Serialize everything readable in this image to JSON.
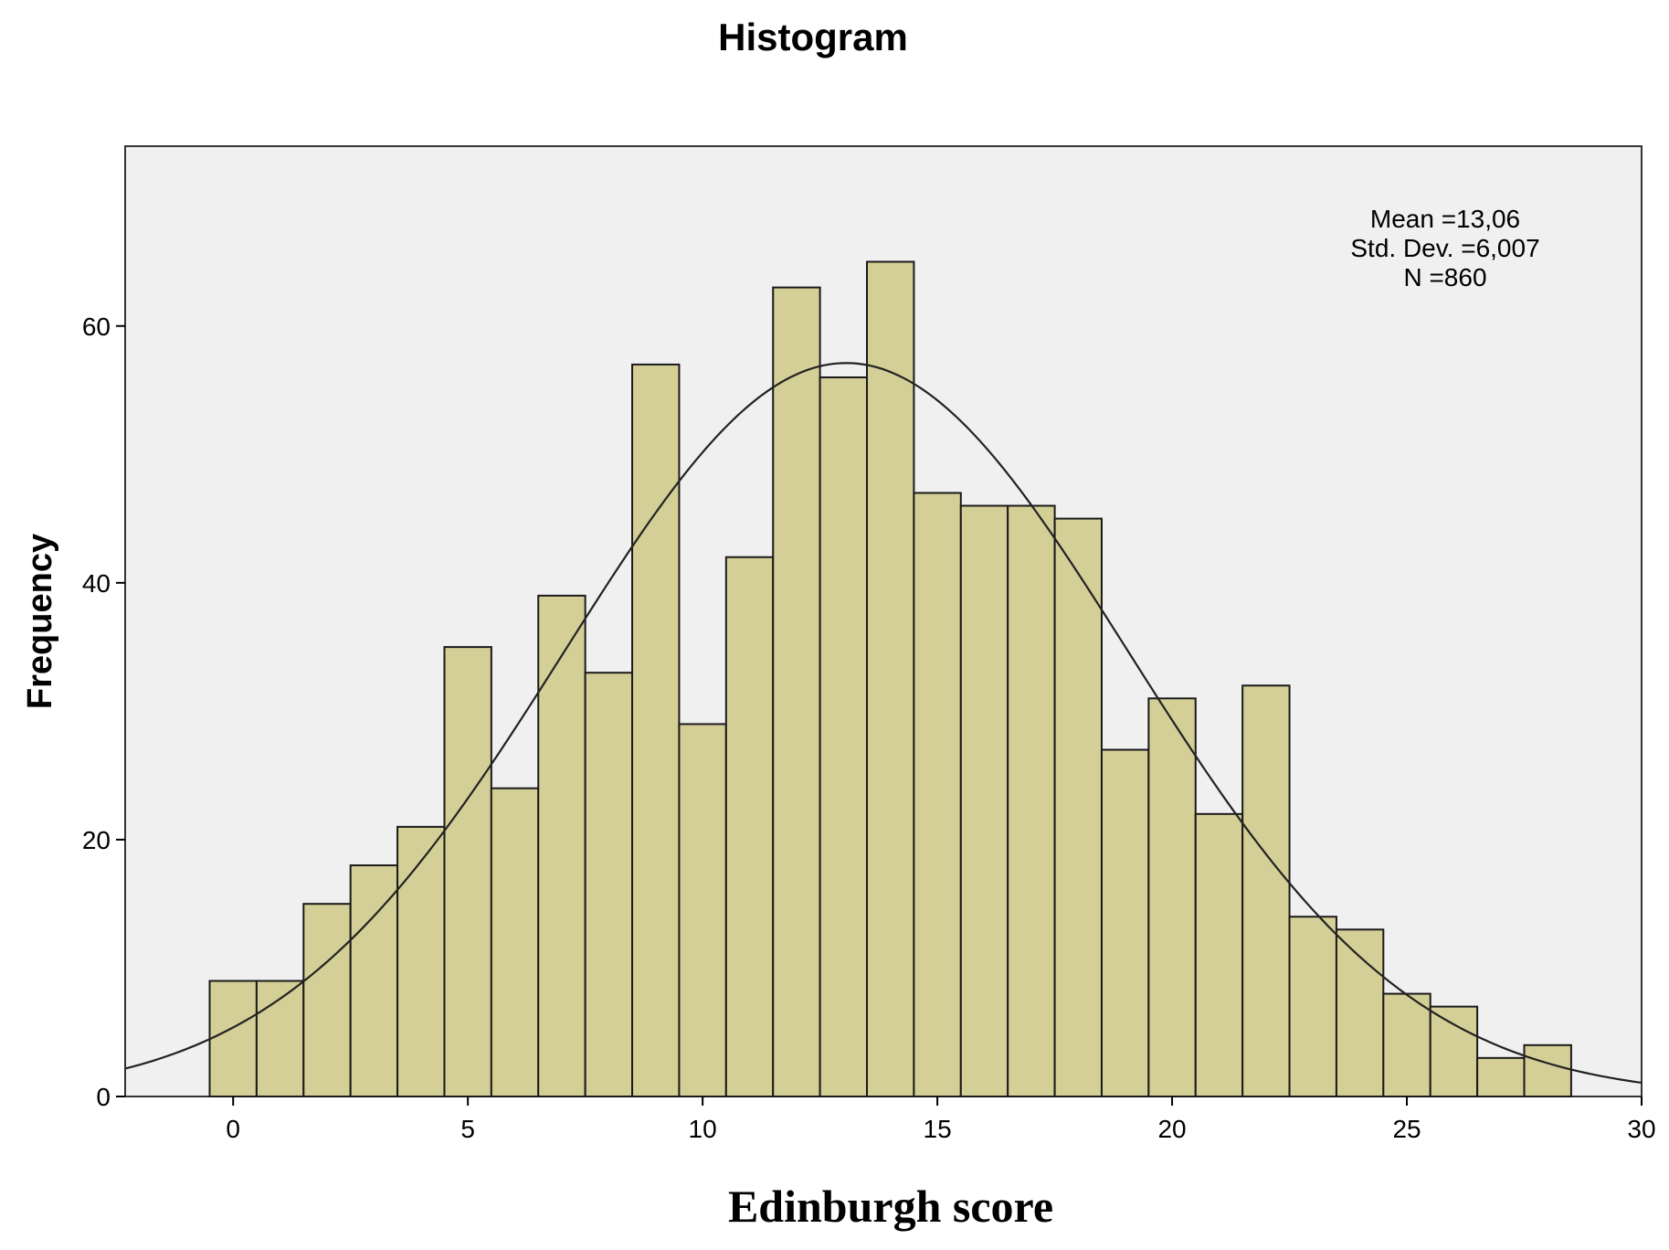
{
  "chart_data": {
    "type": "bar",
    "title": "Histogram",
    "xlabel": "Edinburgh score",
    "ylabel": "Frequency",
    "xlim": [
      -2.3,
      30
    ],
    "ylim": [
      0,
      74
    ],
    "xticks": [
      0,
      5,
      10,
      15,
      20,
      25,
      30
    ],
    "yticks": [
      0,
      20,
      40,
      60
    ],
    "grid": false,
    "bins": [
      {
        "x": 0,
        "count": 9
      },
      {
        "x": 1,
        "count": 9
      },
      {
        "x": 2,
        "count": 15
      },
      {
        "x": 3,
        "count": 18
      },
      {
        "x": 4,
        "count": 21
      },
      {
        "x": 5,
        "count": 35
      },
      {
        "x": 6,
        "count": 24
      },
      {
        "x": 7,
        "count": 39
      },
      {
        "x": 8,
        "count": 33
      },
      {
        "x": 9,
        "count": 57
      },
      {
        "x": 10,
        "count": 29
      },
      {
        "x": 11,
        "count": 42
      },
      {
        "x": 12,
        "count": 63
      },
      {
        "x": 13,
        "count": 56
      },
      {
        "x": 14,
        "count": 65
      },
      {
        "x": 15,
        "count": 47
      },
      {
        "x": 16,
        "count": 46
      },
      {
        "x": 17,
        "count": 46
      },
      {
        "x": 18,
        "count": 45
      },
      {
        "x": 19,
        "count": 27
      },
      {
        "x": 20,
        "count": 31
      },
      {
        "x": 21,
        "count": 22
      },
      {
        "x": 22,
        "count": 32
      },
      {
        "x": 23,
        "count": 14
      },
      {
        "x": 24,
        "count": 13
      },
      {
        "x": 25,
        "count": 8
      },
      {
        "x": 26,
        "count": 7
      },
      {
        "x": 27,
        "count": 3
      },
      {
        "x": 28,
        "count": 4
      }
    ],
    "normal_curve": {
      "mean": 13.06,
      "std": 6.007,
      "n": 860,
      "bin_width": 1
    },
    "stats": {
      "mean_label": "Mean =13,06",
      "std_label": "Std. Dev. =6,007",
      "n_label": "N =860"
    },
    "colors": {
      "bar_fill": "#d4cf96",
      "bar_stroke": "#1a1a1a",
      "plot_background": "#f0f0f0",
      "curve": "#222222"
    }
  }
}
